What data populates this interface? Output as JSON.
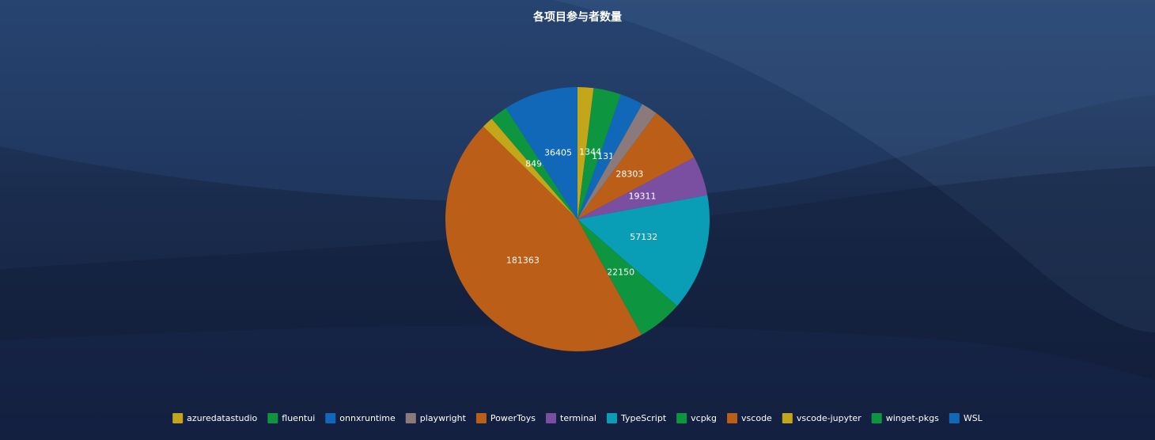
{
  "chart_data": {
    "type": "pie",
    "title": "各项目参与者数量",
    "categories": [
      "azuredatastudio",
      "fluentui",
      "onnxruntime",
      "playwright",
      "PowerToys",
      "terminal",
      "TypeScript",
      "vcpkg",
      "vscode",
      "vscode-jupyter",
      "winget-pkgs",
      "WSL"
    ],
    "values": [
      7800,
      13449,
      11318,
      8000,
      28303,
      19311,
      57132,
      22150,
      181363,
      5500,
      8498,
      36405
    ],
    "colors": [
      "#c4a61a",
      "#0d963f",
      "#1168b9",
      "#8b7a7c",
      "#bb5e17",
      "#7a4fa1",
      "#0a9db6",
      "#0d963f",
      "#bb5e17",
      "#c4a61a",
      "#0d963f",
      "#1168b9"
    ],
    "legend": "bottom"
  }
}
